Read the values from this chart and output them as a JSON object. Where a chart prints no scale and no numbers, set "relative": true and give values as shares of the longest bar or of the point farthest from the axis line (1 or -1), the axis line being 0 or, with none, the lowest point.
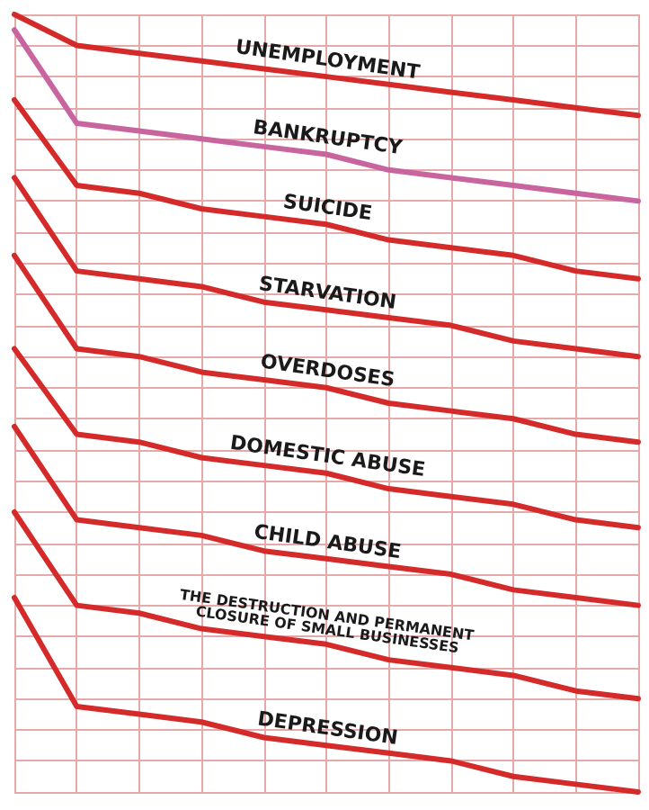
{
  "chart_data": {
    "type": "line",
    "relative": true,
    "grid": true,
    "legend": false,
    "marker": "none",
    "line_style": "solid",
    "categories": [
      null,
      null,
      null,
      null,
      null,
      null,
      null,
      null,
      null,
      null,
      null
    ],
    "series": [
      {
        "name": "UNEMPLOYMENT",
        "color": "#d42a2a",
        "values": [
          1,
          0.96,
          0.95,
          0.94,
          0.93,
          0.92,
          0.91,
          0.9,
          0.89,
          0.88,
          0.87
        ]
      },
      {
        "name": "BANKRUPTCY",
        "color": "#c8649e",
        "values": [
          0.98,
          0.86,
          0.85,
          0.84,
          0.83,
          0.82,
          0.8,
          0.79,
          0.78,
          0.77,
          0.76
        ]
      },
      {
        "name": "SUICIDE",
        "color": "#d42a2a",
        "values": [
          0.89,
          0.78,
          0.77,
          0.75,
          0.74,
          0.73,
          0.71,
          0.7,
          0.69,
          0.67,
          0.66
        ]
      },
      {
        "name": "STARVATION",
        "color": "#d42a2a",
        "values": [
          0.79,
          0.67,
          0.66,
          0.65,
          0.63,
          0.62,
          0.61,
          0.6,
          0.58,
          0.57,
          0.56
        ]
      },
      {
        "name": "OVERDOSES",
        "color": "#d42a2a",
        "values": [
          0.69,
          0.57,
          0.56,
          0.54,
          0.53,
          0.52,
          0.5,
          0.49,
          0.48,
          0.46,
          0.45
        ]
      },
      {
        "name": "DOMESTIC ABUSE",
        "color": "#d42a2a",
        "values": [
          0.57,
          0.46,
          0.45,
          0.43,
          0.42,
          0.41,
          0.39,
          0.38,
          0.37,
          0.35,
          0.34
        ]
      },
      {
        "name": "CHILD ABUSE",
        "color": "#d42a2a",
        "values": [
          0.47,
          0.35,
          0.34,
          0.33,
          0.31,
          0.3,
          0.29,
          0.28,
          0.26,
          0.25,
          0.24
        ]
      },
      {
        "name": "THE DESTRUCTION AND PERMANENT CLOSURE OF SMALL BUSINESSES",
        "color": "#d42a2a",
        "values": [
          0.36,
          0.24,
          0.23,
          0.21,
          0.2,
          0.19,
          0.17,
          0.16,
          0.15,
          0.13,
          0.12
        ]
      },
      {
        "name": "DEPRESSION",
        "color": "#d42a2a",
        "values": [
          0.25,
          0.11,
          0.1,
          0.09,
          0.07,
          0.06,
          0.05,
          0.04,
          0.02,
          0.01,
          0
        ]
      }
    ]
  }
}
